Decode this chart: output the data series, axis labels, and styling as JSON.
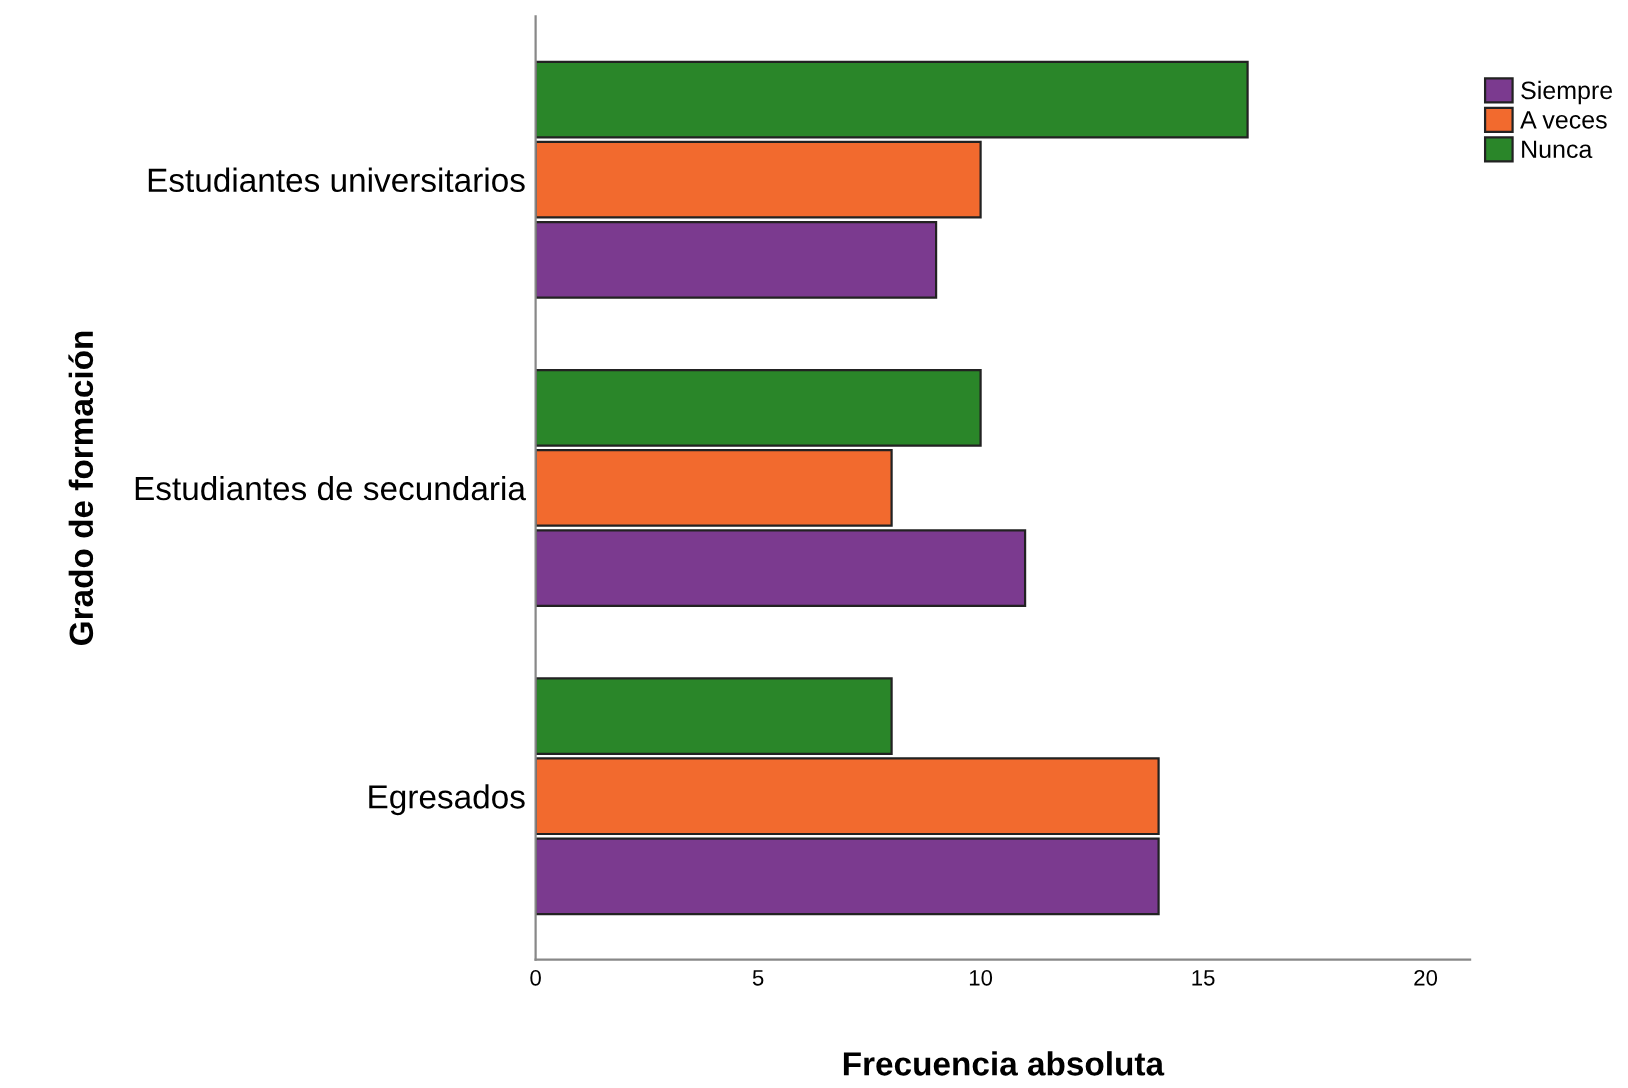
{
  "chart_data": {
    "type": "bar",
    "orientation": "horizontal",
    "xlabel": "Frecuencia absoluta",
    "ylabel": "Grado de formación",
    "categories": [
      "Estudiantes universitarios",
      "Estudiantes de secundaria",
      "Egresados"
    ],
    "series": [
      {
        "name": "Siempre",
        "color": "#7b3a8f",
        "values": [
          9,
          11,
          14
        ]
      },
      {
        "name": "A veces",
        "color": "#f26a2e",
        "values": [
          10,
          8,
          14
        ]
      },
      {
        "name": "Nunca",
        "color": "#2a8629",
        "values": [
          16,
          10,
          8
        ]
      }
    ],
    "xlim": [
      0,
      21
    ],
    "xticks": [
      0,
      5,
      10,
      15,
      20
    ],
    "grid": false,
    "legend": "top right"
  }
}
